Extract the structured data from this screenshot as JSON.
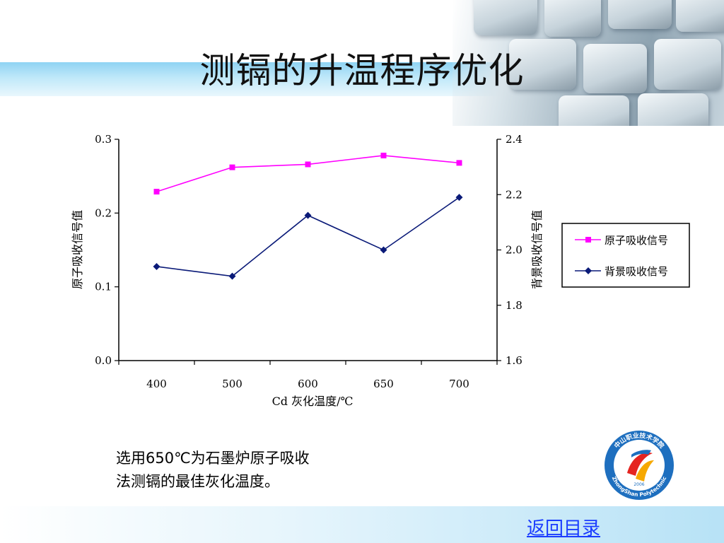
{
  "slide": {
    "title": "测镉的升温程序优化",
    "conclusion_line1": "选用650℃为石墨炉原子吸收",
    "conclusion_line2": "法测镉的最佳灰化温度。",
    "back_link": "返回目录"
  },
  "logo": {
    "text_top": "中山职业技术学院",
    "text_bottom": "ZhongShan Polytechnic",
    "year": "2006"
  },
  "colors": {
    "atomic": "#ff00ff",
    "background": "#0a1a78",
    "accent": "#1a3cff"
  },
  "chart_data": {
    "type": "line",
    "categories": [
      "400",
      "500",
      "600",
      "650",
      "700"
    ],
    "xlabel": "Cd  灰化温度/℃",
    "ylabel_left": "原子吸收信号值",
    "ylabel_right": "背景吸收信号值",
    "ylim_left": [
      0.0,
      0.3
    ],
    "yticks_left": [
      "0.0",
      "0.1",
      "0.2",
      "0.3"
    ],
    "ylim_right": [
      1.6,
      2.4
    ],
    "yticks_right": [
      "1.6",
      "1.8",
      "2.0",
      "2.2",
      "2.4"
    ],
    "grid": false,
    "legend": "right",
    "series": [
      {
        "name": "原子吸收信号",
        "axis": "left",
        "marker": "square",
        "color": "#ff00ff",
        "values": [
          0.229,
          0.262,
          0.266,
          0.278,
          0.268
        ]
      },
      {
        "name": "背景吸收信号",
        "axis": "right",
        "marker": "diamond",
        "color": "#0a1a78",
        "values": [
          1.94,
          1.905,
          2.125,
          2.0,
          2.19
        ]
      }
    ]
  }
}
